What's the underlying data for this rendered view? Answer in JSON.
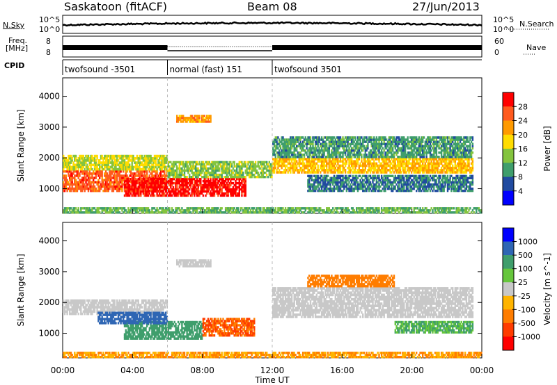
{
  "header": {
    "station": "Saskatoon (fitACF)",
    "beam": "Beam 08",
    "date": "27/Jun/2013"
  },
  "noise_panel": {
    "left_label": "N.Sky",
    "left_ticks": [
      "10^5",
      "10^0"
    ],
    "right_ticks": [
      "10^5",
      "10^0"
    ],
    "right_label": "N.Search"
  },
  "freq_panel": {
    "left_label_1": "Freq.",
    "left_label_2": "[MHz]",
    "left_ticks": [
      "8",
      "8"
    ],
    "right_ticks": [
      "60",
      "0"
    ],
    "right_label": "Nave"
  },
  "cpid_panel": {
    "label": "CPID",
    "segments": [
      "twofsound -3501",
      "normal (fast) 151",
      "twofsound 3501"
    ]
  },
  "chart_data": [
    {
      "type": "heatmap",
      "title": "",
      "ylabel": "Slant Range [km]",
      "ylim": [
        200,
        4600
      ],
      "yticks": [
        "1000",
        "2000",
        "3000",
        "4000"
      ],
      "xlim": [
        0,
        24
      ],
      "colorbar_label": "Power [dB]",
      "colorbar_ticks": [
        "28",
        "24",
        "20",
        "16",
        "12",
        "8",
        "4"
      ],
      "colorbar_colors": [
        "#ff0000",
        "#ff5a1e",
        "#ff9a00",
        "#ffdc00",
        "#84c43e",
        "#3f9e6c",
        "#214ba0",
        "#0000ff"
      ],
      "bands": [
        {
          "t0": 0.0,
          "t1": 6.0,
          "r0": 900,
          "r1": 1600,
          "value": 24
        },
        {
          "t0": 0.0,
          "t1": 6.0,
          "r0": 1600,
          "r1": 2100,
          "value": 14
        },
        {
          "t0": 3.5,
          "t1": 10.5,
          "r0": 750,
          "r1": 1350,
          "value": 28
        },
        {
          "t0": 6.0,
          "t1": 12.0,
          "r0": 1350,
          "r1": 1900,
          "value": 12
        },
        {
          "t0": 6.5,
          "t1": 8.5,
          "r0": 3150,
          "r1": 3400,
          "value": 20
        },
        {
          "t0": 12.0,
          "t1": 23.5,
          "r0": 1500,
          "r1": 2000,
          "value": 18
        },
        {
          "t0": 12.0,
          "t1": 23.5,
          "r0": 2000,
          "r1": 2700,
          "value": 8
        },
        {
          "t0": 14.0,
          "t1": 23.5,
          "r0": 900,
          "r1": 1450,
          "value": 6
        },
        {
          "t0": 0.0,
          "t1": 24.0,
          "r0": 200,
          "r1": 400,
          "value": 10
        }
      ]
    },
    {
      "type": "heatmap",
      "title": "",
      "ylabel": "Slant Range [km]",
      "ylim": [
        200,
        4600
      ],
      "yticks": [
        "1000",
        "2000",
        "3000",
        "4000"
      ],
      "xlim": [
        0,
        24
      ],
      "colorbar_label": "Velocity [m s^-1]",
      "colorbar_ticks": [
        "1000",
        "500",
        "100",
        "25",
        "-25",
        "-100",
        "-500",
        "-1000"
      ],
      "colorbar_colors": [
        "#0000ff",
        "#2f66b4",
        "#3f9e6c",
        "#66c63c",
        "#c8c8c8",
        "#ffb400",
        "#ff7d00",
        "#ff3c00",
        "#ff0000"
      ],
      "bands": [
        {
          "t0": 0.0,
          "t1": 6.0,
          "r0": 1600,
          "r1": 2100,
          "value": 0
        },
        {
          "t0": 3.5,
          "t1": 8.0,
          "r0": 800,
          "r1": 1400,
          "value": 200
        },
        {
          "t0": 2.0,
          "t1": 6.0,
          "r0": 1300,
          "r1": 1700,
          "value": 400
        },
        {
          "t0": 8.0,
          "t1": 11.0,
          "r0": 900,
          "r1": 1500,
          "value": -300
        },
        {
          "t0": 6.5,
          "t1": 8.5,
          "r0": 3150,
          "r1": 3400,
          "value": 0
        },
        {
          "t0": 12.0,
          "t1": 23.5,
          "r0": 1500,
          "r1": 2500,
          "value": 0
        },
        {
          "t0": 14.0,
          "t1": 19.0,
          "r0": 2500,
          "r1": 2900,
          "value": -150
        },
        {
          "t0": 19.0,
          "t1": 23.5,
          "r0": 1000,
          "r1": 1400,
          "value": 60
        },
        {
          "t0": 0.0,
          "t1": 24.0,
          "r0": 200,
          "r1": 400,
          "value": -60
        }
      ]
    }
  ],
  "x_axis": {
    "ticks": [
      "00:00",
      "04:00",
      "08:00",
      "12:00",
      "16:00",
      "20:00",
      "00:00"
    ],
    "label": "Time UT"
  }
}
